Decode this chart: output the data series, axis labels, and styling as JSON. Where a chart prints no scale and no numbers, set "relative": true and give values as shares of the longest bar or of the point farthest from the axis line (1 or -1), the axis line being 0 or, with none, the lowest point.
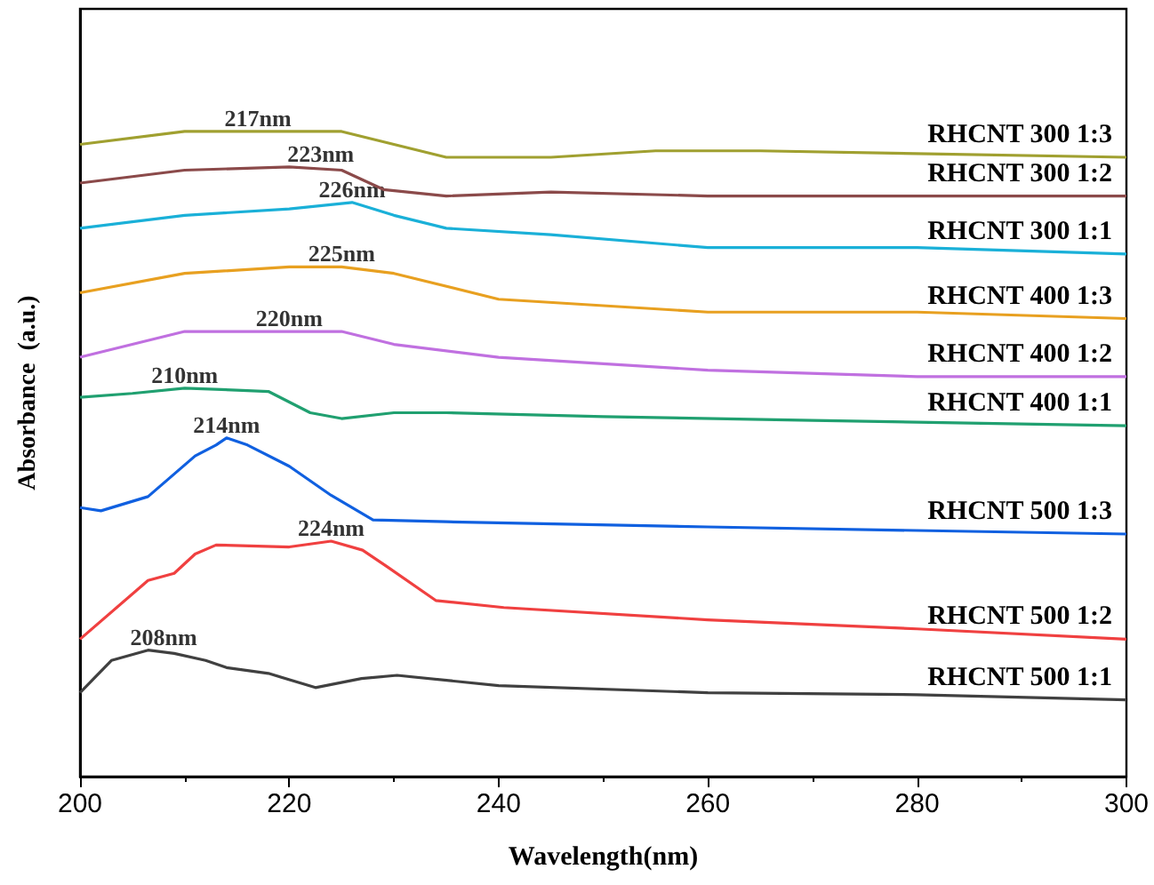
{
  "chart_data": {
    "type": "line",
    "relative": true,
    "xlabel": "Wavelength(nm)",
    "ylabel": "Absorbance  (a.u.)",
    "xlim": [
      200,
      300
    ],
    "xticks": [
      200,
      220,
      240,
      260,
      280,
      300
    ],
    "tick_labels": "x",
    "grid": false,
    "legend": false,
    "marker": "none",
    "line_style": "solid",
    "series": [
      {
        "name": "RHCNT 300 1:3",
        "color": "#a0a030",
        "x": [
          200,
          210,
          217,
          225,
          230,
          235,
          245,
          255,
          265,
          300
        ],
        "values": [
          0.98,
          1.0,
          1.0,
          1.0,
          0.98,
          0.96,
          0.96,
          0.97,
          0.97,
          0.96
        ]
      },
      {
        "name": "RHCNT 300 1:2",
        "color": "#8b4a4a",
        "x": [
          200,
          210,
          220,
          225,
          229,
          235,
          245,
          260,
          300
        ],
        "values": [
          0.92,
          0.94,
          0.945,
          0.94,
          0.91,
          0.9,
          0.906,
          0.9,
          0.9
        ]
      },
      {
        "name": "RHCNT 300 1:1",
        "color": "#1ab0d8",
        "x": [
          200,
          210,
          220,
          226,
          230,
          235,
          245,
          260,
          280,
          300
        ],
        "values": [
          0.85,
          0.87,
          0.88,
          0.89,
          0.87,
          0.85,
          0.84,
          0.82,
          0.82,
          0.81
        ]
      },
      {
        "name": "RHCNT 400 1:3",
        "color": "#e8a020",
        "x": [
          200,
          210,
          220,
          225,
          230,
          240,
          260,
          280,
          300
        ],
        "values": [
          0.75,
          0.78,
          0.79,
          0.79,
          0.78,
          0.74,
          0.72,
          0.72,
          0.71
        ]
      },
      {
        "name": "RHCNT 400 1:2",
        "color": "#c070e0",
        "x": [
          200,
          210,
          215,
          220,
          225,
          230,
          240,
          260,
          280,
          300
        ],
        "values": [
          0.65,
          0.69,
          0.69,
          0.69,
          0.69,
          0.67,
          0.65,
          0.63,
          0.62,
          0.62
        ]
      },
      {
        "name": "RHCNT 400 1:1",
        "color": "#20a070",
        "x": [
          200,
          205,
          210,
          215,
          218,
          222,
          225,
          230,
          235,
          250,
          270,
          300
        ],
        "values": [
          0.588,
          0.594,
          0.602,
          0.599,
          0.597,
          0.564,
          0.555,
          0.564,
          0.564,
          0.558,
          0.552,
          0.544
        ]
      },
      {
        "name": "RHCNT 500 1:3",
        "color": "#1060e0",
        "x": [
          200,
          202,
          206.5,
          211,
          213,
          214,
          216,
          220,
          224,
          228,
          235,
          260,
          300
        ],
        "values": [
          0.417,
          0.412,
          0.434,
          0.497,
          0.514,
          0.525,
          0.514,
          0.481,
          0.436,
          0.398,
          0.395,
          0.387,
          0.376
        ]
      },
      {
        "name": "RHCNT 500 1:2",
        "color": "#f04040",
        "x": [
          200,
          206.5,
          209,
          211,
          213,
          220,
          224,
          227,
          229.3,
          234,
          240.5,
          260,
          280,
          300
        ],
        "values": [
          0.213,
          0.304,
          0.315,
          0.345,
          0.359,
          0.356,
          0.365,
          0.351,
          0.326,
          0.273,
          0.262,
          0.243,
          0.229,
          0.213
        ]
      },
      {
        "name": "RHCNT 500 1:1",
        "color": "#404040",
        "x": [
          200,
          203,
          206.5,
          209,
          212,
          214,
          218,
          222.5,
          226.9,
          230.3,
          240,
          260,
          280,
          300
        ],
        "values": [
          0.13,
          0.18,
          0.196,
          0.191,
          0.18,
          0.169,
          0.16,
          0.138,
          0.152,
          0.157,
          0.141,
          0.13,
          0.127,
          0.119
        ]
      }
    ],
    "annotations": [
      {
        "text": "217nm",
        "x": 217,
        "y": 1.0
      },
      {
        "text": "223nm",
        "x": 223,
        "y": 0.945
      },
      {
        "text": "226nm",
        "x": 226,
        "y": 0.89
      },
      {
        "text": "225nm",
        "x": 225,
        "y": 0.79
      },
      {
        "text": "220nm",
        "x": 220,
        "y": 0.69
      },
      {
        "text": "210nm",
        "x": 210,
        "y": 0.602
      },
      {
        "text": "214nm",
        "x": 214,
        "y": 0.525
      },
      {
        "text": "224nm",
        "x": 224,
        "y": 0.365
      },
      {
        "text": "208nm",
        "x": 208,
        "y": 0.196
      }
    ]
  }
}
